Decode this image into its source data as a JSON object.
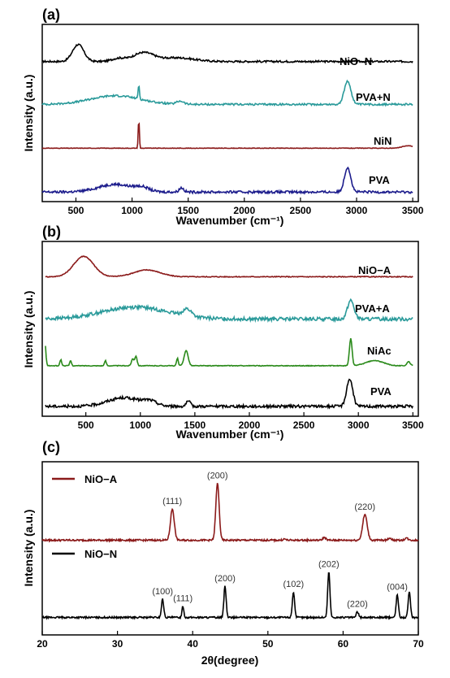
{
  "chart_data": [
    {
      "type": "line",
      "panel": "(a)",
      "xlabel": "Wavenumber (cm⁻¹)",
      "ylabel": "Intensity (a.u.)",
      "xlim": [
        200,
        3550
      ],
      "xticks": [
        "500",
        "1000",
        "1500",
        "2000",
        "2500",
        "3000",
        "3500"
      ],
      "series": [
        {
          "name": "NiO−N",
          "color": "#000000",
          "offset": 3,
          "baseline": 0.22,
          "peaks": [
            [
              520,
              0.55,
              50
            ],
            [
              880,
              0.1,
              60
            ],
            [
              1100,
              0.28,
              90
            ],
            [
              1400,
              0.12,
              150
            ]
          ],
          "noise": 0.03
        },
        {
          "name": "PVA+N",
          "color": "#2a9a9a",
          "offset": 2,
          "baseline": 0.2,
          "peaks": [
            [
              850,
              0.28,
              220
            ],
            [
              1060,
              0.45,
              6
            ],
            [
              1430,
              0.1,
              30
            ],
            [
              2920,
              0.75,
              30
            ]
          ],
          "noise": 0.03
        },
        {
          "name": "NiN",
          "color": "#8b1a1a",
          "offset": 1,
          "baseline": 0.15,
          "peaks": [
            [
              1060,
              0.95,
              5
            ],
            [
              3460,
              0.08,
              50
            ]
          ],
          "noise": 0.008
        },
        {
          "name": "PVA",
          "color": "#1c1c8c",
          "offset": 0,
          "baseline": 0.1,
          "peaks": [
            [
              850,
              0.25,
              150
            ],
            [
              1090,
              0.12,
              60
            ],
            [
              1440,
              0.14,
              20
            ],
            [
              2920,
              0.8,
              28
            ]
          ],
          "noise": 0.04
        }
      ]
    },
    {
      "type": "line",
      "panel": "(b)",
      "xlabel": "Wavenumber (cm⁻¹)",
      "ylabel": "Intensity (a.u.)",
      "xlim": [
        100,
        3550
      ],
      "xticks": [
        "500",
        "1000",
        "1500",
        "2000",
        "2500",
        "3000",
        "3500"
      ],
      "series": [
        {
          "name": "NiO−A",
          "color": "#8b1a1a",
          "offset": 3,
          "baseline": 0.18,
          "peaks": [
            [
              480,
              0.6,
              90
            ],
            [
              1060,
              0.2,
              120
            ]
          ],
          "noise": 0.012
        },
        {
          "name": "PVA+A",
          "color": "#2a9a9a",
          "offset": 2,
          "baseline": 0.18,
          "peaks": [
            [
              950,
              0.35,
              300
            ],
            [
              1430,
              0.2,
              40
            ],
            [
              2930,
              0.55,
              30
            ]
          ],
          "noise": 0.05
        },
        {
          "name": "NiAc",
          "color": "#2a8a1a",
          "offset": 1,
          "baseline": 0.05,
          "peaks": [
            [
              120,
              0.95,
              10
            ],
            [
              270,
              0.18,
              8
            ],
            [
              360,
              0.15,
              8
            ],
            [
              680,
              0.15,
              8
            ],
            [
              930,
              0.2,
              12
            ],
            [
              960,
              0.28,
              10
            ],
            [
              1340,
              0.22,
              8
            ],
            [
              1420,
              0.45,
              18
            ],
            [
              2930,
              0.8,
              12
            ],
            [
              3150,
              0.15,
              80
            ],
            [
              3460,
              0.12,
              15
            ]
          ],
          "noise": 0.01
        },
        {
          "name": "PVA",
          "color": "#000000",
          "offset": 0,
          "baseline": 0.1,
          "peaks": [
            [
              850,
              0.25,
              150
            ],
            [
              1090,
              0.12,
              60
            ],
            [
              1440,
              0.14,
              20
            ],
            [
              2920,
              0.8,
              28
            ]
          ],
          "noise": 0.04
        }
      ]
    },
    {
      "type": "line",
      "panel": "(c)",
      "xlabel": "2θ(degree)",
      "ylabel": "Intensity (a.u.)",
      "xlim": [
        20,
        70
      ],
      "xticks": [
        "20",
        "30",
        "40",
        "50",
        "60",
        "70"
      ],
      "series": [
        {
          "name": "NiO−A",
          "color": "#8b1a1a",
          "offset": 1,
          "baseline": 0.05,
          "peaks": [
            [
              37.3,
              0.55,
              0.25
            ],
            [
              43.3,
              1.0,
              0.22
            ],
            [
              62.9,
              0.45,
              0.3
            ],
            [
              75.3,
              0.0,
              0.3
            ],
            [
              79.4,
              0.0,
              0.3
            ],
            [
              57.5,
              0.05,
              0.2
            ],
            [
              66.2,
              0.04,
              0.2
            ],
            [
              68.4,
              0.04,
              0.2
            ],
            [
              52.2,
              0.02,
              0.2
            ]
          ],
          "labels": [
            [
              "(111)",
              37.3
            ],
            [
              "(200)",
              43.3
            ],
            [
              "(220)",
              62.9
            ]
          ]
        },
        {
          "name": "NiO−N",
          "color": "#000000",
          "offset": 0,
          "baseline": 0.05,
          "peaks": [
            [
              36.0,
              0.32,
              0.15
            ],
            [
              38.7,
              0.2,
              0.12
            ],
            [
              44.3,
              0.55,
              0.15
            ],
            [
              53.4,
              0.45,
              0.15
            ],
            [
              58.1,
              0.8,
              0.15
            ],
            [
              61.9,
              0.1,
              0.15
            ],
            [
              67.2,
              0.4,
              0.15
            ],
            [
              68.8,
              0.45,
              0.15
            ]
          ],
          "labels": [
            [
              "(100)",
              36.0
            ],
            [
              "(111)",
              38.7
            ],
            [
              "(200)",
              44.3
            ],
            [
              "(102)",
              53.4
            ],
            [
              "(202)",
              58.1
            ],
            [
              "(220)",
              61.9
            ],
            [
              "(004)",
              67.2
            ]
          ]
        }
      ]
    }
  ],
  "series_labels": {
    "a": [
      "NiO−N",
      "PVA+N",
      "NiN",
      "PVA"
    ],
    "b": [
      "NiO−A",
      "PVA+A",
      "NiAc",
      "PVA"
    ]
  },
  "legend_c": [
    "NiO−A",
    "NiO−N"
  ]
}
